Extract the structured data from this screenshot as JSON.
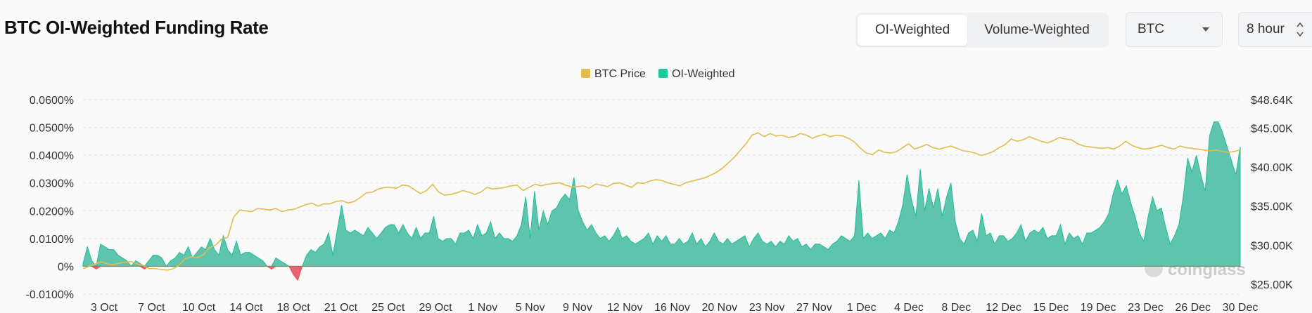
{
  "header": {
    "title": "BTC OI-Weighted Funding Rate",
    "tabs": [
      {
        "label": "OI-Weighted",
        "active": true
      },
      {
        "label": "Volume-Weighted",
        "active": false
      }
    ],
    "coin_select": {
      "value": "BTC",
      "icon": "caret-down-icon"
    },
    "interval_select": {
      "value": "8 hour",
      "icon": "up-down-icon"
    }
  },
  "chart_data": {
    "type": "area",
    "legend": [
      {
        "name": "BTC Price",
        "color": "#e0bd4e"
      },
      {
        "name": "OI-Weighted",
        "color": "#1dc99a"
      }
    ],
    "legend_position": "top-center",
    "watermark": "coinglass",
    "x_ticks": [
      "3 Oct",
      "7 Oct",
      "10 Oct",
      "14 Oct",
      "18 Oct",
      "21 Oct",
      "25 Oct",
      "29 Oct",
      "1 Nov",
      "5 Nov",
      "9 Nov",
      "12 Nov",
      "16 Nov",
      "20 Nov",
      "23 Nov",
      "27 Nov",
      "1 Dec",
      "4 Dec",
      "8 Dec",
      "12 Dec",
      "15 Dec",
      "19 Dec",
      "23 Dec",
      "26 Dec",
      "30 Dec"
    ],
    "y_left": {
      "ticks": [
        "0.0600%",
        "0.0500%",
        "0.0400%",
        "0.0300%",
        "0.0200%",
        "0.0100%",
        "0%",
        "-0.0100%"
      ],
      "range": [
        -0.01,
        0.06
      ],
      "unit": "%"
    },
    "y_right": {
      "ticks": [
        "$48.64K",
        "$45.00K",
        "$40.00K",
        "$35.00K",
        "$30.00K",
        "$25.00K"
      ],
      "range": [
        25000,
        48640
      ]
    },
    "series": [
      {
        "name": "OI-Weighted",
        "axis": "left",
        "color": "#1dc99a",
        "negative_color": "#f0616f",
        "x_start": "1 Oct",
        "x_end": "30 Dec",
        "values": [
          0.001,
          0.007,
          0.002,
          -0.001,
          0.008,
          0.007,
          0.006,
          0.006,
          0.004,
          0.003,
          0.002,
          0.0,
          0.002,
          0.001,
          -0.001,
          0.002,
          0.004,
          0.004,
          0.003,
          0.0,
          0.002,
          0.003,
          0.005,
          0.004,
          0.007,
          0.003,
          0.005,
          0.007,
          0.006,
          0.01,
          0.006,
          0.004,
          0.011,
          0.006,
          0.004,
          0.009,
          0.004,
          0.005,
          0.005,
          0.004,
          0.003,
          0.002,
          0.0,
          -0.001,
          0.003,
          0.002,
          0.001,
          0.0,
          -0.003,
          -0.005,
          0.0,
          0.004,
          0.006,
          0.005,
          0.007,
          0.008,
          0.012,
          0.004,
          0.013,
          0.022,
          0.013,
          0.012,
          0.013,
          0.012,
          0.011,
          0.014,
          0.012,
          0.01,
          0.012,
          0.014,
          0.015,
          0.015,
          0.012,
          0.015,
          0.012,
          0.01,
          0.014,
          0.01,
          0.012,
          0.012,
          0.018,
          0.01,
          0.009,
          0.01,
          0.01,
          0.008,
          0.012,
          0.012,
          0.013,
          0.01,
          0.015,
          0.011,
          0.012,
          0.016,
          0.01,
          0.012,
          0.01,
          0.01,
          0.009,
          0.011,
          0.015,
          0.025,
          0.01,
          0.027,
          0.013,
          0.02,
          0.015,
          0.02,
          0.021,
          0.024,
          0.026,
          0.024,
          0.032,
          0.02,
          0.016,
          0.013,
          0.015,
          0.012,
          0.01,
          0.011,
          0.009,
          0.011,
          0.014,
          0.01,
          0.011,
          0.009,
          0.008,
          0.009,
          0.01,
          0.012,
          0.008,
          0.011,
          0.009,
          0.011,
          0.008,
          0.008,
          0.01,
          0.008,
          0.009,
          0.012,
          0.008,
          0.01,
          0.007,
          0.009,
          0.012,
          0.009,
          0.008,
          0.01,
          0.008,
          0.009,
          0.01,
          0.011,
          0.007,
          0.01,
          0.012,
          0.009,
          0.008,
          0.009,
          0.007,
          0.009,
          0.008,
          0.011,
          0.009,
          0.01,
          0.007,
          0.008,
          0.006,
          0.008,
          0.008,
          0.007,
          0.006,
          0.008,
          0.009,
          0.011,
          0.01,
          0.009,
          0.011,
          0.031,
          0.01,
          0.012,
          0.01,
          0.011,
          0.012,
          0.01,
          0.013,
          0.012,
          0.016,
          0.022,
          0.033,
          0.024,
          0.018,
          0.035,
          0.02,
          0.028,
          0.021,
          0.028,
          0.018,
          0.025,
          0.03,
          0.016,
          0.01,
          0.008,
          0.012,
          0.013,
          0.009,
          0.019,
          0.011,
          0.012,
          0.008,
          0.011,
          0.011,
          0.009,
          0.01,
          0.012,
          0.015,
          0.009,
          0.012,
          0.013,
          0.012,
          0.014,
          0.01,
          0.011,
          0.011,
          0.015,
          0.008,
          0.012,
          0.01,
          0.011,
          0.008,
          0.012,
          0.012,
          0.013,
          0.014,
          0.016,
          0.019,
          0.026,
          0.031,
          0.026,
          0.029,
          0.023,
          0.018,
          0.012,
          0.009,
          0.018,
          0.025,
          0.02,
          0.021,
          0.014,
          0.008,
          0.011,
          0.015,
          0.025,
          0.039,
          0.034,
          0.04,
          0.033,
          0.027,
          0.047,
          0.052,
          0.052,
          0.048,
          0.043,
          0.038,
          0.033,
          0.043
        ]
      },
      {
        "name": "BTC Price",
        "axis": "right",
        "color": "#e0bd4e",
        "x_start": "1 Oct",
        "x_end": "30 Dec",
        "values": [
          27000,
          27300,
          27600,
          27900,
          27600,
          27500,
          27700,
          27800,
          27900,
          27600,
          27400,
          27000,
          27000,
          26900,
          26800,
          27000,
          27500,
          28300,
          28500,
          28400,
          28800,
          29700,
          30000,
          30800,
          31000,
          33600,
          34500,
          34400,
          34300,
          34700,
          34600,
          34500,
          34700,
          34300,
          34500,
          34600,
          34900,
          35200,
          35400,
          35000,
          35300,
          35300,
          35600,
          35700,
          35400,
          35600,
          36100,
          36700,
          36800,
          37200,
          37400,
          37400,
          37300,
          37700,
          37600,
          37100,
          36600,
          37000,
          37800,
          36800,
          36400,
          36500,
          36700,
          37000,
          36800,
          36500,
          36800,
          37400,
          37200,
          37300,
          37400,
          37600,
          37700,
          37000,
          37400,
          37800,
          37600,
          37800,
          37900,
          38000,
          37700,
          37500,
          37500,
          37600,
          37300,
          37800,
          37700,
          37500,
          37900,
          38000,
          37700,
          37400,
          38000,
          37900,
          38200,
          38400,
          38300,
          38000,
          37800,
          37600,
          38000,
          38200,
          38400,
          38600,
          38900,
          39300,
          39800,
          40500,
          41200,
          42100,
          43000,
          44100,
          44400,
          43900,
          44300,
          44000,
          44100,
          43800,
          43900,
          44300,
          44100,
          43700,
          44000,
          44200,
          43900,
          44100,
          44000,
          43700,
          43200,
          42400,
          41800,
          41600,
          42200,
          41900,
          41800,
          42000,
          42500,
          43000,
          42300,
          42600,
          42900,
          42500,
          42300,
          42500,
          42700,
          42400,
          42100,
          42000,
          41800,
          41500,
          41700,
          42000,
          42500,
          42900,
          43600,
          43300,
          43500,
          43900,
          43600,
          43300,
          43100,
          43400,
          43800,
          43600,
          43500,
          43000,
          42700,
          42600,
          42500,
          42400,
          42500,
          42300,
          42700,
          43300,
          42800,
          42500,
          42300,
          42400,
          42600,
          42800,
          42500,
          42300,
          42700,
          42500,
          42400,
          42300,
          42200,
          42100,
          42200,
          42000,
          41900,
          42000,
          42200
        ]
      }
    ]
  }
}
